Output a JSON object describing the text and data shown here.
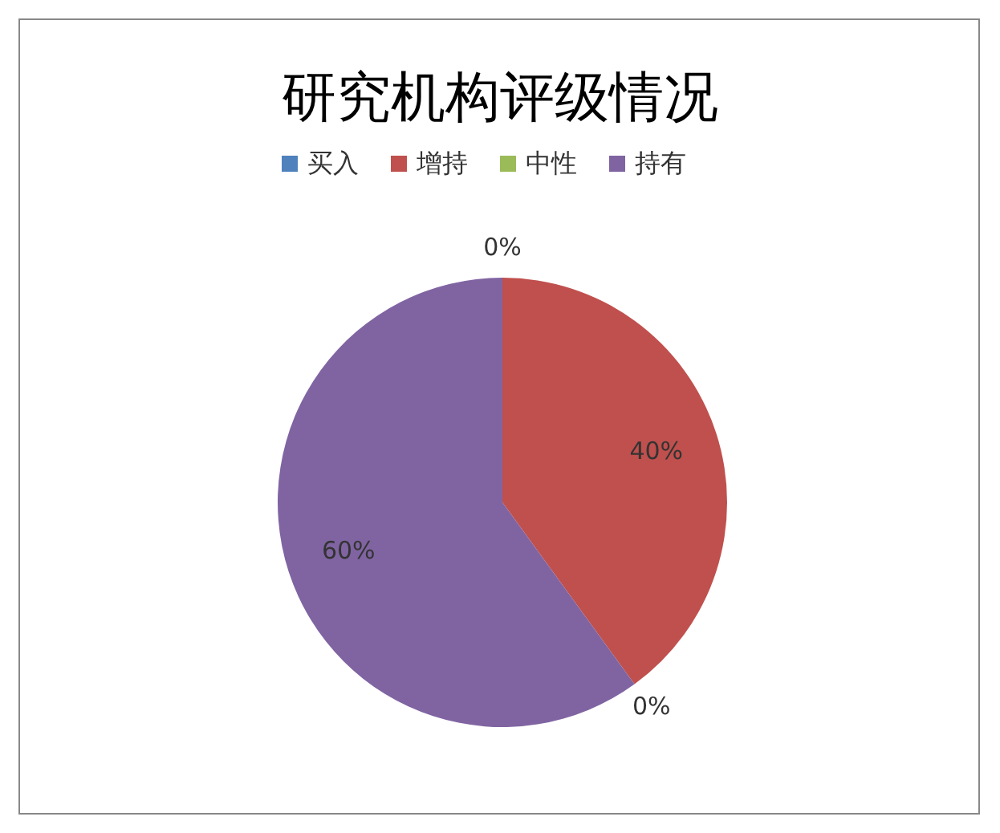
{
  "chart_data": {
    "type": "pie",
    "title": "研究机构评级情况",
    "categories": [
      "买入",
      "增持",
      "中性",
      "持有"
    ],
    "values": [
      0,
      40,
      0,
      60
    ],
    "colors": [
      "#4f81bd",
      "#c0504d",
      "#9bbb59",
      "#8064a2"
    ],
    "value_labels": [
      "0%",
      "40%",
      "0%",
      "60%"
    ],
    "legend": "top"
  }
}
